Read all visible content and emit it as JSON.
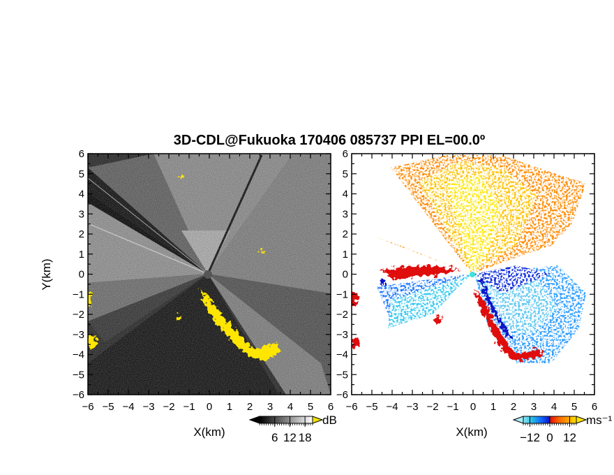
{
  "chart_data": {
    "title": "3D-CDL@Fukuoka 170406 085737 PPI EL=00.0º",
    "panels": [
      {
        "type": "heatmap",
        "quantity": "reflectivity",
        "xlabel": "X(km)",
        "ylabel": "Y(km)",
        "xlim": [
          -6,
          6
        ],
        "ylim": [
          -6,
          6
        ],
        "xticks": [
          -6,
          -5,
          -4,
          -3,
          -2,
          -1,
          0,
          1,
          2,
          3,
          4,
          5,
          6
        ],
        "yticks": [
          -6,
          -5,
          -4,
          -3,
          -2,
          -1,
          0,
          1,
          2,
          3,
          4,
          5,
          6
        ],
        "colorbar": {
          "unit": "dB",
          "ticks": [
            "6",
            "12",
            "18"
          ],
          "range": [
            0,
            21
          ],
          "colors": [
            "#000000",
            "#ffffff"
          ],
          "extend": "both"
        },
        "highlight_color": "#ffe600"
      },
      {
        "type": "heatmap",
        "quantity": "doppler velocity",
        "xlabel": "X(km)",
        "xlim": [
          -6,
          6
        ],
        "ylim": [
          -6,
          6
        ],
        "xticks": [
          -6,
          -5,
          -4,
          -3,
          -2,
          -1,
          0,
          1,
          2,
          3,
          4,
          5,
          6
        ],
        "yticks": [
          -6,
          -5,
          -4,
          -3,
          -2,
          -1,
          0,
          1,
          2,
          3,
          4,
          5,
          6
        ],
        "colorbar": {
          "unit": "ms⁻¹",
          "ticks": [
            "−12",
            "0",
            "12"
          ],
          "range": [
            -16,
            16
          ],
          "colors": [
            "#8fe6f2",
            "#20b8e6",
            "#1060ff",
            "#0a18c8",
            "#e01010",
            "#ff6000",
            "#ffa000",
            "#ffe000"
          ],
          "extend": "both"
        }
      }
    ]
  }
}
